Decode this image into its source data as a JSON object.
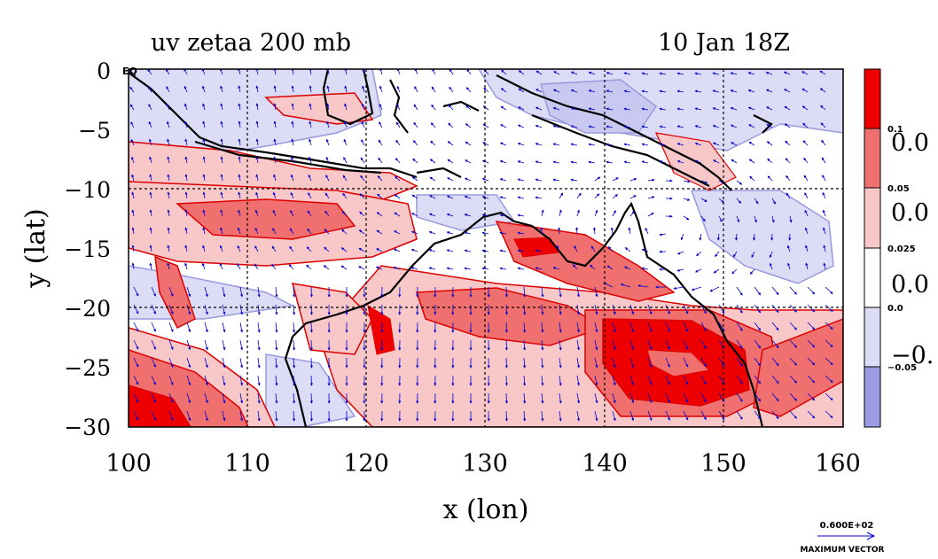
{
  "title": "uv zetaa 200 mb",
  "datetime": "10 Jan 18Z",
  "corner_label": "EQ",
  "xlabel": "x (lon)",
  "ylabel": "y (lat)",
  "x_ticks": [
    "100",
    "110",
    "120",
    "130",
    "140",
    "150",
    "160"
  ],
  "y_ticks": [
    "0",
    "−5",
    "−10",
    "−15",
    "−20",
    "−25",
    "−30"
  ],
  "map": {
    "lon_range": [
      100,
      160
    ],
    "lat_range": [
      -30,
      0
    ],
    "grid_interval": 10
  },
  "colorbar": {
    "levels": [
      "0.1",
      "0.05",
      "0.025",
      "0.0",
      "−0.05"
    ],
    "side_labels": [
      "0.0",
      "0.0",
      "0.0",
      "−0."
    ],
    "colors": [
      "#ee0000",
      "#f07070",
      "#f8c8c8",
      "#ffffff",
      "#dcdcf6",
      "#9c9ce6"
    ]
  },
  "vector_key": {
    "value": "0.600E+02",
    "label": "MAXIMUM VECTOR"
  },
  "colors": {
    "strong_positive": "#ee0000",
    "positive": "#f07070",
    "weak_positive": "#f8c8c8",
    "weak_negative": "#dcdcf6",
    "negative": "#9c9ce6",
    "contour_red": "#dd0000",
    "contour_blue": "#9999dd",
    "vectors": "#0000cc",
    "coast": "#000000"
  }
}
